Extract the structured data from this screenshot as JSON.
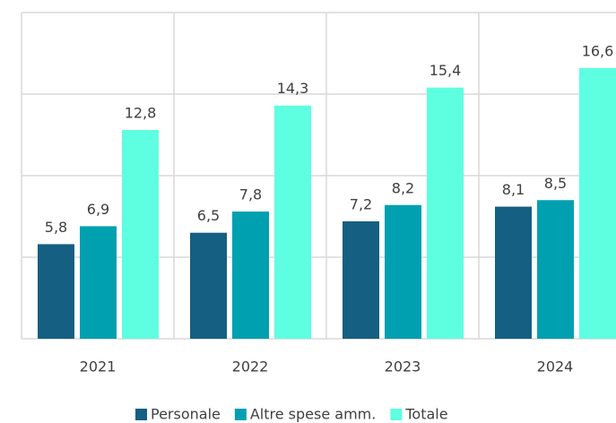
{
  "chart_data": {
    "type": "bar",
    "categories": [
      "2021",
      "2022",
      "2023",
      "2024"
    ],
    "series": [
      {
        "name": "Personale",
        "color": "#155f82",
        "values": [
          5.8,
          6.5,
          7.2,
          8.1
        ],
        "value_labels": [
          "5,8",
          "6,5",
          "7,2",
          "8,1"
        ]
      },
      {
        "name": "Altre spese amm.",
        "color": "#00a0b0",
        "values": [
          6.9,
          7.8,
          8.2,
          8.5
        ],
        "value_labels": [
          "6,9",
          "7,8",
          "8,2",
          "8,5"
        ]
      },
      {
        "name": "Totale",
        "color": "#5effe0",
        "values": [
          12.8,
          14.3,
          15.4,
          16.6
        ],
        "value_labels": [
          "12,8",
          "14,3",
          "15,4",
          "16,6"
        ]
      }
    ],
    "ylim": [
      0,
      20
    ],
    "yticks": [
      0,
      5,
      10,
      15,
      20
    ],
    "grid": true,
    "legend": "bottom"
  }
}
